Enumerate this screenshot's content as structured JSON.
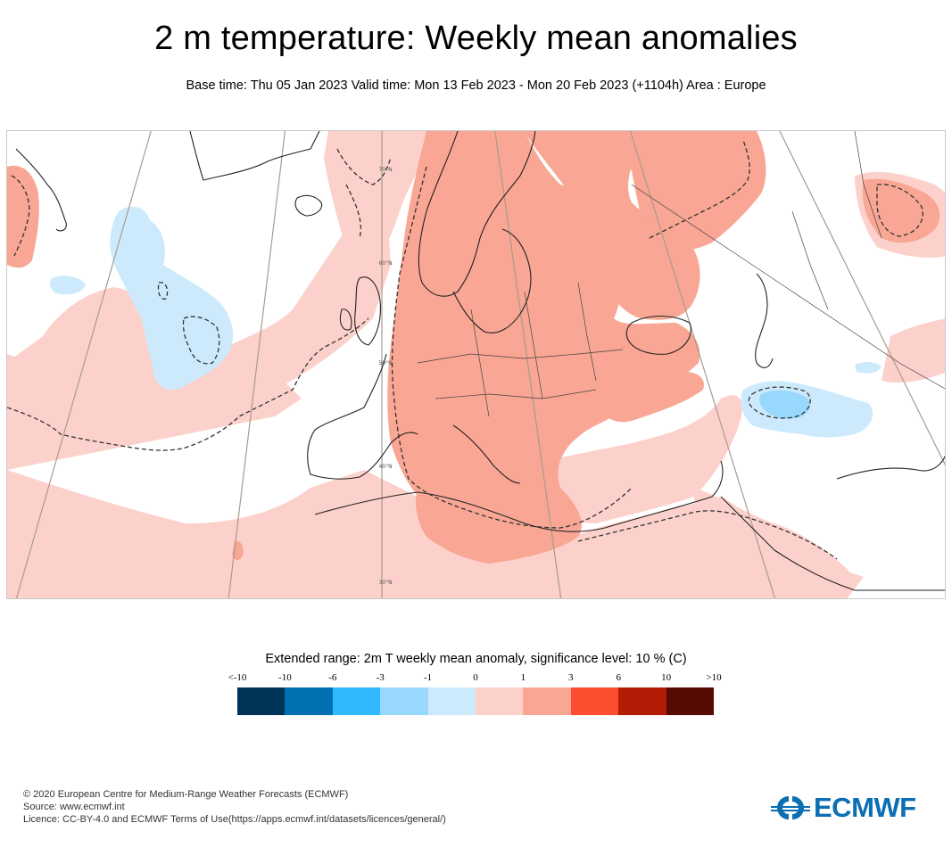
{
  "header": {
    "title": "2 m temperature: Weekly mean anomalies",
    "subtitle": "Base time: Thu 05 Jan 2023 Valid time: Mon 13 Feb 2023 - Mon 20 Feb 2023 (+1104h) Area : Europe"
  },
  "map": {
    "area": "Europe",
    "parameter": "2m temperature weekly mean anomaly",
    "latitude_labels": [
      "70°N",
      "60°N",
      "50°N",
      "40°N",
      "30°N"
    ],
    "significance_contour": "dashed",
    "regions": [
      {
        "name": "Scandinavia & Central/Eastern Europe",
        "category": "1 to 3"
      },
      {
        "name": "Western Mediterranean & Italy",
        "category": "1 to 3"
      },
      {
        "name": "Eastern Atlantic & Iberia",
        "category": "0 to 1"
      },
      {
        "name": "North Africa",
        "category": "0 to 1"
      },
      {
        "name": "Western Siberia (north)",
        "category": "1 to 3"
      },
      {
        "name": "Central North Atlantic",
        "category": "-1 to 0"
      },
      {
        "name": "Caspian / Central Asia",
        "category": "-1 to 0"
      }
    ]
  },
  "legend": {
    "title": "Extended range: 2m T weekly mean anomaly, significance level: 10 % (C)",
    "tick_labels": [
      "<-10",
      "-10",
      "-6",
      "-3",
      "-1",
      "0",
      "1",
      "3",
      "6",
      "10",
      ">10"
    ],
    "bins": [
      {
        "range": "<-10",
        "color": "#003456"
      },
      {
        "range": "-10 to -6",
        "color": "#0070b0"
      },
      {
        "range": "-6 to -3",
        "color": "#30b8fc"
      },
      {
        "range": "-3 to -1",
        "color": "#98d8fc"
      },
      {
        "range": "-1 to 0",
        "color": "#cceafc"
      },
      {
        "range": "0 to 1",
        "color": "#fdd1cb"
      },
      {
        "range": "1 to 3",
        "color": "#f9a694"
      },
      {
        "range": "3 to 6",
        "color": "#fb4e30"
      },
      {
        "range": "6 to 10",
        "color": "#b21b04"
      },
      {
        "range": ">10",
        "color": "#580b04"
      }
    ]
  },
  "footer": {
    "copyright": "© 2020 European Centre for Medium-Range Weather Forecasts (ECMWF)",
    "source": "Source: www.ecmwf.int",
    "licence": "Licence: CC-BY-4.0 and ECMWF Terms of Use(https://apps.ecmwf.int/datasets/licences/general/)"
  },
  "logo": {
    "text": "ECMWF",
    "color": "#0a6fb3"
  }
}
